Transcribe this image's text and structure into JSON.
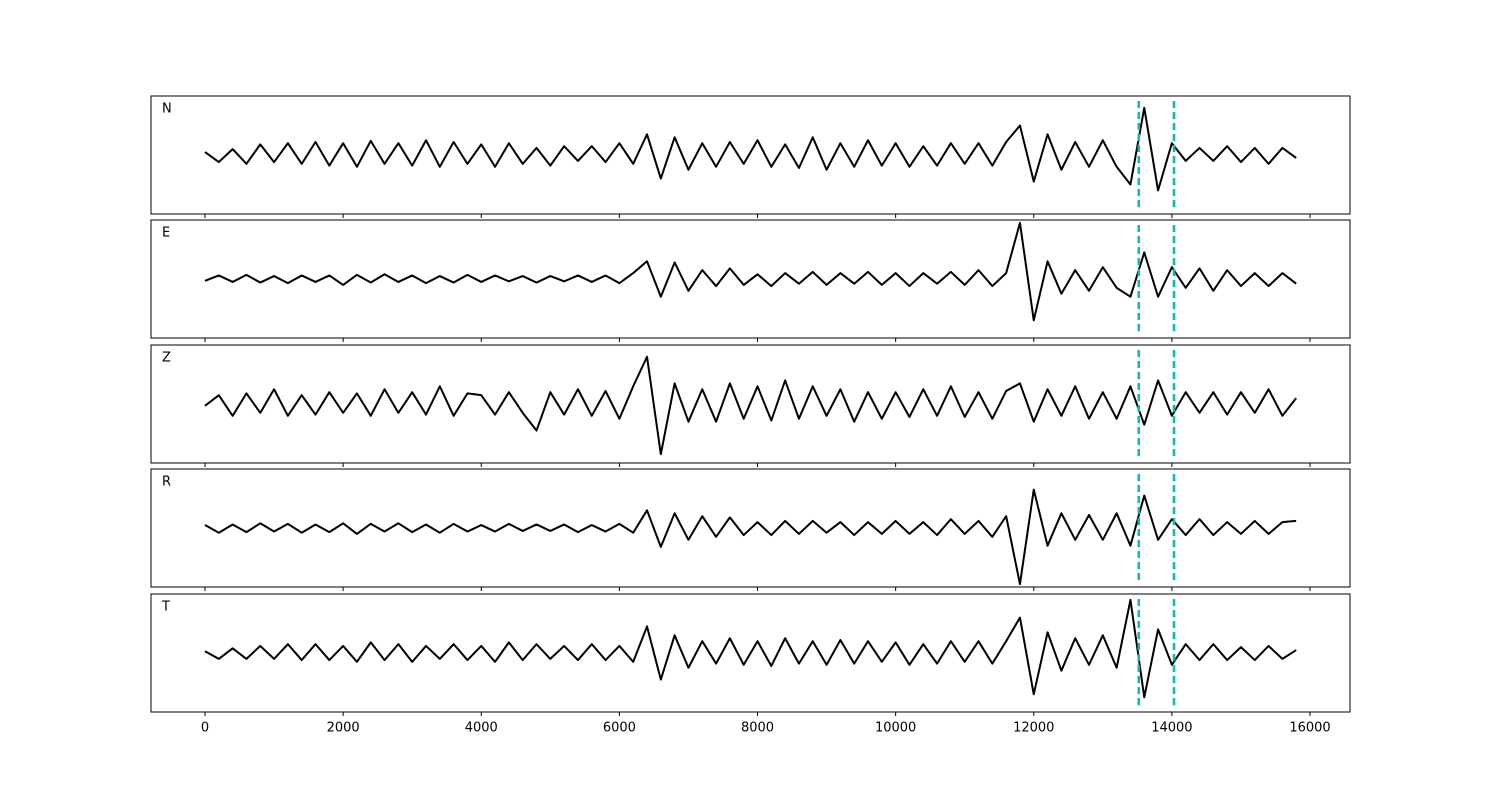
{
  "chart_data": {
    "type": "line",
    "x": [
      0,
      200,
      400,
      600,
      800,
      1000,
      1200,
      1400,
      1600,
      1800,
      2000,
      2200,
      2400,
      2600,
      2800,
      3000,
      3200,
      3400,
      3600,
      3800,
      4000,
      4200,
      4400,
      4600,
      4800,
      5000,
      5200,
      5400,
      5600,
      5800,
      6000,
      6200,
      6400,
      6600,
      6800,
      7000,
      7200,
      7400,
      7600,
      7800,
      8000,
      8200,
      8400,
      8600,
      8800,
      9000,
      9200,
      9400,
      9600,
      9800,
      10000,
      10200,
      10400,
      10600,
      10800,
      11000,
      11200,
      11400,
      11600,
      11800,
      12000,
      12200,
      12400,
      12600,
      12800,
      13000,
      13200,
      13400,
      13600,
      13800,
      14000,
      14200,
      14400,
      14600,
      14800,
      15000,
      15200,
      15400,
      15600,
      15800
    ],
    "series": [
      {
        "name": "N",
        "color": "#000000",
        "values": [
          0.05,
          -0.12,
          0.1,
          -0.15,
          0.18,
          -0.12,
          0.2,
          -0.15,
          0.22,
          -0.18,
          0.2,
          -0.2,
          0.24,
          -0.15,
          0.2,
          -0.18,
          0.25,
          -0.2,
          0.22,
          -0.15,
          0.18,
          -0.2,
          0.2,
          -0.15,
          0.12,
          -0.18,
          0.15,
          -0.1,
          0.15,
          -0.12,
          0.2,
          -0.15,
          0.35,
          -0.4,
          0.3,
          -0.25,
          0.2,
          -0.2,
          0.22,
          -0.15,
          0.25,
          -0.2,
          0.18,
          -0.22,
          0.3,
          -0.25,
          0.2,
          -0.2,
          0.25,
          -0.18,
          0.2,
          -0.2,
          0.15,
          -0.18,
          0.2,
          -0.15,
          0.2,
          -0.18,
          0.22,
          0.5,
          -0.45,
          0.35,
          -0.25,
          0.22,
          -0.2,
          0.25,
          -0.2,
          -0.5,
          0.8,
          -0.6,
          0.2,
          -0.1,
          0.12,
          -0.1,
          0.15,
          -0.12,
          0.12,
          -0.15,
          0.12,
          -0.05
        ]
      },
      {
        "name": "E",
        "color": "#000000",
        "values": [
          -0.03,
          0.06,
          -0.05,
          0.07,
          -0.06,
          0.05,
          -0.07,
          0.06,
          -0.05,
          0.06,
          -0.1,
          0.07,
          -0.06,
          0.08,
          -0.05,
          0.06,
          -0.07,
          0.05,
          -0.06,
          0.07,
          -0.05,
          0.06,
          -0.04,
          0.05,
          -0.06,
          0.05,
          -0.04,
          0.06,
          -0.05,
          0.06,
          -0.07,
          0.1,
          0.3,
          -0.3,
          0.28,
          -0.2,
          0.15,
          -0.12,
          0.18,
          -0.1,
          0.08,
          -0.12,
          0.1,
          -0.08,
          0.12,
          -0.1,
          0.1,
          -0.08,
          0.12,
          -0.1,
          0.1,
          -0.12,
          0.1,
          -0.08,
          0.12,
          -0.1,
          0.15,
          -0.12,
          0.1,
          0.95,
          -0.7,
          0.3,
          -0.25,
          0.15,
          -0.2,
          0.2,
          -0.15,
          -0.3,
          0.45,
          -0.3,
          0.2,
          -0.15,
          0.18,
          -0.2,
          0.15,
          -0.12,
          0.1,
          -0.12,
          0.1,
          -0.08
        ]
      },
      {
        "name": "Z",
        "color": "#000000",
        "values": [
          -0.03,
          0.15,
          -0.2,
          0.18,
          -0.15,
          0.25,
          -0.2,
          0.15,
          -0.18,
          0.2,
          -0.15,
          0.18,
          -0.2,
          0.25,
          -0.15,
          0.2,
          -0.18,
          0.3,
          -0.2,
          0.18,
          0.15,
          -0.18,
          0.2,
          -0.15,
          -0.45,
          0.2,
          -0.18,
          0.25,
          -0.2,
          0.22,
          -0.25,
          0.3,
          0.8,
          -0.85,
          0.35,
          -0.3,
          0.25,
          -0.3,
          0.35,
          -0.25,
          0.3,
          -0.28,
          0.4,
          -0.25,
          0.3,
          -0.2,
          0.25,
          -0.3,
          0.2,
          -0.25,
          0.2,
          -0.22,
          0.25,
          -0.2,
          0.3,
          -0.22,
          0.2,
          -0.25,
          0.22,
          0.35,
          -0.3,
          0.25,
          -0.2,
          0.3,
          -0.25,
          0.2,
          -0.25,
          0.3,
          -0.35,
          0.4,
          -0.2,
          0.2,
          -0.15,
          0.2,
          -0.18,
          0.2,
          -0.15,
          0.25,
          -0.2,
          0.1
        ]
      },
      {
        "name": "R",
        "color": "#000000",
        "values": [
          0.05,
          -0.08,
          0.06,
          -0.07,
          0.08,
          -0.06,
          0.07,
          -0.08,
          0.06,
          -0.07,
          0.08,
          -0.1,
          0.07,
          -0.06,
          0.08,
          -0.07,
          0.06,
          -0.08,
          0.07,
          -0.06,
          0.05,
          -0.06,
          0.07,
          -0.05,
          0.06,
          -0.05,
          0.06,
          -0.07,
          0.05,
          -0.06,
          0.07,
          -0.08,
          0.3,
          -0.32,
          0.25,
          -0.2,
          0.2,
          -0.15,
          0.18,
          -0.12,
          0.1,
          -0.12,
          0.12,
          -0.1,
          0.12,
          -0.08,
          0.1,
          -0.12,
          0.1,
          -0.1,
          0.12,
          -0.1,
          0.1,
          -0.12,
          0.15,
          -0.1,
          0.12,
          -0.15,
          0.2,
          -0.95,
          0.65,
          -0.3,
          0.25,
          -0.2,
          0.22,
          -0.2,
          0.25,
          -0.3,
          0.55,
          -0.2,
          0.15,
          -0.12,
          0.15,
          -0.12,
          0.1,
          -0.1,
          0.12,
          -0.1,
          0.1,
          0.12
        ]
      },
      {
        "name": "T",
        "color": "#000000",
        "values": [
          0.03,
          -0.1,
          0.08,
          -0.1,
          0.12,
          -0.1,
          0.15,
          -0.12,
          0.15,
          -0.12,
          0.12,
          -0.15,
          0.18,
          -0.12,
          0.15,
          -0.15,
          0.12,
          -0.1,
          0.15,
          -0.12,
          0.12,
          -0.15,
          0.18,
          -0.12,
          0.15,
          -0.1,
          0.12,
          -0.12,
          0.15,
          -0.12,
          0.12,
          -0.15,
          0.45,
          -0.45,
          0.3,
          -0.25,
          0.2,
          -0.18,
          0.25,
          -0.2,
          0.2,
          -0.22,
          0.25,
          -0.18,
          0.2,
          -0.2,
          0.22,
          -0.18,
          0.2,
          -0.15,
          0.18,
          -0.2,
          0.15,
          -0.18,
          0.2,
          -0.15,
          0.2,
          -0.18,
          0.2,
          0.6,
          -0.7,
          0.35,
          -0.3,
          0.25,
          -0.2,
          0.3,
          -0.25,
          0.9,
          -0.75,
          0.4,
          -0.2,
          0.15,
          -0.12,
          0.15,
          -0.12,
          0.1,
          -0.12,
          0.12,
          -0.1,
          0.05
        ]
      }
    ],
    "xlim": [
      -782,
      16579
    ],
    "xticks": [
      0,
      2000,
      4000,
      6000,
      8000,
      10000,
      12000,
      14000,
      16000
    ],
    "ylim": [
      -1,
      1
    ],
    "vlines": [
      13520,
      14030
    ],
    "vline_color": "#00bfbf"
  }
}
